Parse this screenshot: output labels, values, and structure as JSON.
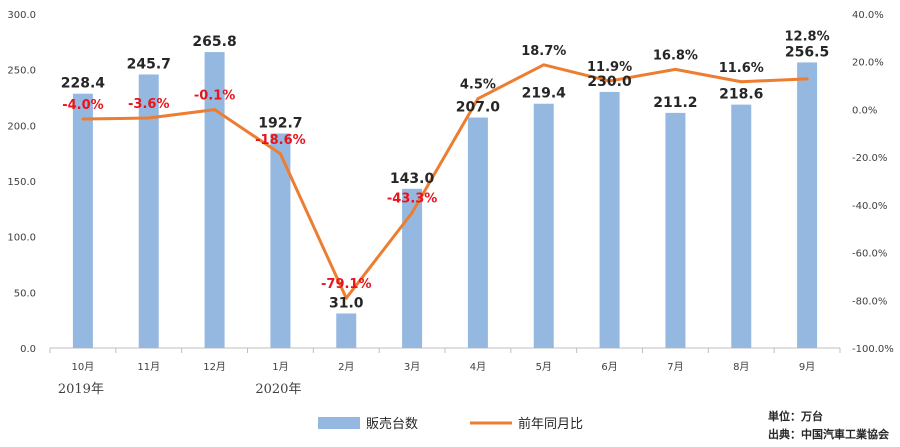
{
  "chart_data": {
    "type": "bar+line",
    "categories": [
      "10月",
      "11月",
      "12月",
      "1月",
      "2月",
      "3月",
      "4月",
      "5月",
      "6月",
      "7月",
      "8月",
      "9月"
    ],
    "year_labels": [
      {
        "category_index": 0,
        "text": "2019年"
      },
      {
        "category_index": 3,
        "text": "2020年"
      }
    ],
    "series": [
      {
        "name": "販売台数",
        "type": "bar",
        "axis": "left",
        "color": "#95b8e0",
        "values": [
          228.4,
          245.7,
          265.8,
          192.7,
          31.0,
          143.0,
          207.0,
          219.4,
          230.0,
          211.2,
          218.6,
          256.5
        ],
        "labels": [
          "228.4",
          "245.7",
          "265.8",
          "192.7",
          "31.0",
          "143.0",
          "207.0",
          "219.4",
          "230.0",
          "211.2",
          "218.6",
          "256.5"
        ]
      },
      {
        "name": "前年同月比",
        "type": "line",
        "axis": "right",
        "color": "#ed7d31",
        "values": [
          -4.0,
          -3.6,
          -0.1,
          -18.6,
          -79.1,
          -43.3,
          4.5,
          18.7,
          11.9,
          16.8,
          11.6,
          12.8
        ],
        "labels": [
          "-4.0%",
          "-3.6%",
          "-0.1%",
          "-18.6%",
          "-79.1%",
          "-43.3%",
          "4.5%",
          "18.7%",
          "11.9%",
          "16.8%",
          "11.6%",
          "12.8%"
        ]
      }
    ],
    "y_left": {
      "min": 0,
      "max": 300,
      "ticks": [
        "0.0",
        "50.0",
        "100.0",
        "150.0",
        "200.0",
        "250.0",
        "300.0"
      ]
    },
    "y_right": {
      "min": -100,
      "max": 40,
      "ticks": [
        "-100.0%",
        "-80.0%",
        "-60.0%",
        "-40.0%",
        "-20.0%",
        "0.0%",
        "20.0%",
        "40.0%"
      ]
    },
    "grid": false,
    "legend_position": "bottom",
    "negative_label_color": "#e8131b",
    "positive_label_color": "#262626"
  },
  "notes": {
    "unit": "単位：万台",
    "source": "出典：中国汽車工業協会"
  }
}
